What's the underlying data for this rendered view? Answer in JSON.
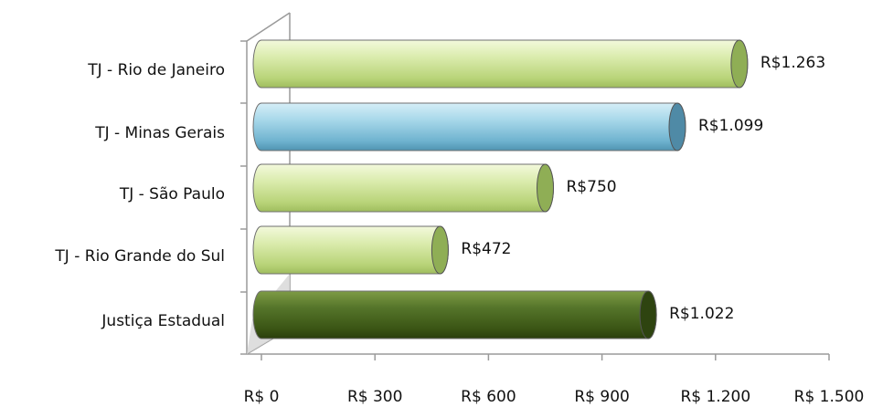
{
  "chart_data": {
    "type": "bar",
    "orientation": "horizontal",
    "style": "3d-cylinder",
    "categories": [
      "TJ - Rio de Janeiro",
      "TJ - Minas Gerais",
      "TJ - São Paulo",
      "TJ - Rio Grande do Sul",
      "Justiça Estadual"
    ],
    "values": [
      1263,
      1099,
      750,
      472,
      1022
    ],
    "value_labels": [
      "R$1.263",
      "R$1.099",
      "R$750",
      "R$472",
      "R$1.022"
    ],
    "bar_colors": [
      "#c9e08e",
      "#8fcbe0",
      "#c9e08e",
      "#c9e08e",
      "#4a6a1c"
    ],
    "xlim": [
      0,
      1500
    ],
    "x_ticks": [
      0,
      300,
      600,
      900,
      1200,
      1500
    ],
    "x_tick_labels": [
      "R$ 0",
      "R$ 300",
      "R$ 600",
      "R$ 900",
      "R$ 1.200",
      "R$ 1.500"
    ],
    "title": "",
    "xlabel": "",
    "ylabel": "",
    "grid": false,
    "legend": "none"
  }
}
